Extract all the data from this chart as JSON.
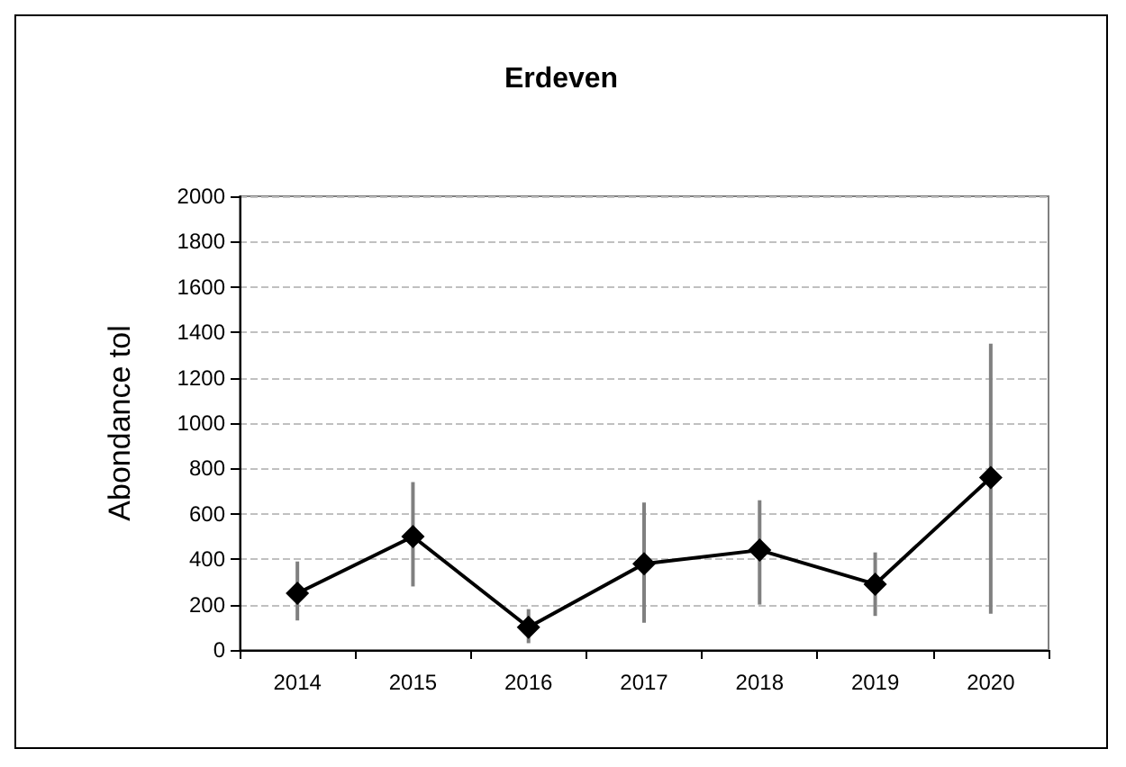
{
  "chart_data": {
    "type": "line",
    "title": "Erdeven",
    "ylabel": "Abondance tol",
    "categories": [
      "2014",
      "2015",
      "2016",
      "2017",
      "2018",
      "2019",
      "2020"
    ],
    "series": [
      {
        "color": "#000000",
        "values": [
          250,
          500,
          100,
          380,
          440,
          290,
          760
        ],
        "errors": [
          [
            130,
            390
          ],
          [
            280,
            740
          ],
          [
            30,
            180
          ],
          [
            120,
            650
          ],
          [
            200,
            660
          ],
          [
            150,
            430
          ],
          [
            160,
            1350
          ]
        ]
      }
    ],
    "ylim": [
      0,
      2000
    ],
    "yticks": [
      0,
      200,
      400,
      600,
      800,
      1000,
      1200,
      1400,
      1600,
      1800,
      2000
    ],
    "grid": "y",
    "marker": "diamond",
    "line_style": "solid"
  }
}
